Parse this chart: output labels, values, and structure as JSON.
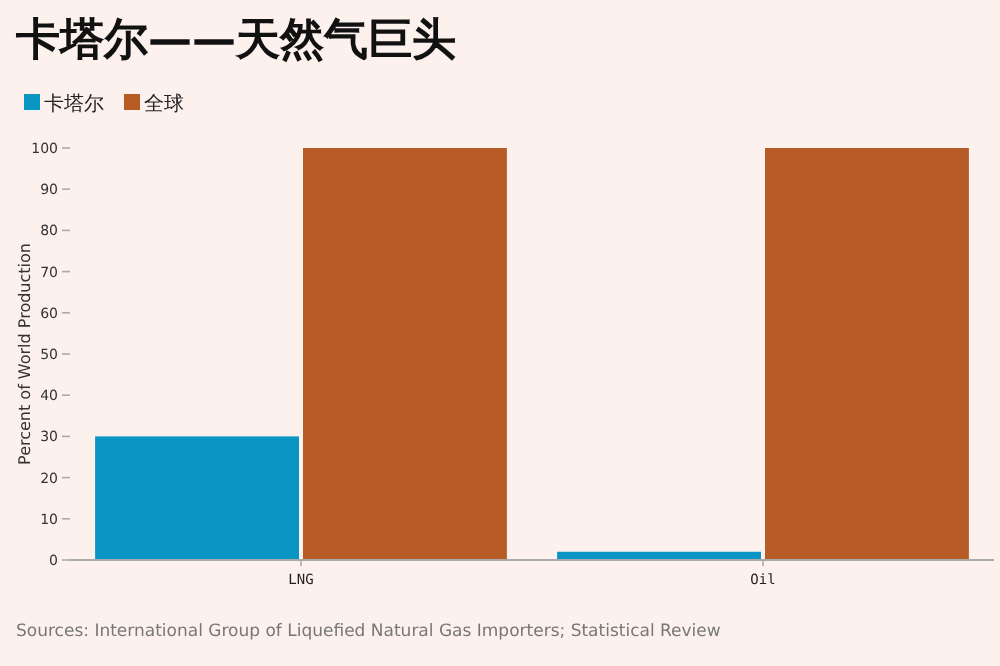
{
  "chart_data": {
    "type": "bar",
    "title": "卡塔尔——天然气巨头",
    "ylabel": "Percent of World Production",
    "categories": [
      "LNG",
      "Oil"
    ],
    "series": [
      {
        "name": "卡塔尔",
        "color": "#0a96c4",
        "values": [
          30,
          2
        ]
      },
      {
        "name": "全球",
        "color": "#b85c27",
        "values": [
          100,
          100
        ]
      }
    ],
    "ylim": [
      0,
      100
    ],
    "yticks": [
      0,
      10,
      20,
      30,
      40,
      50,
      60,
      70,
      80,
      90,
      100
    ],
    "grid": false,
    "legend": "top left",
    "annotations": [
      "Sources: International Group of Liquefied Natural Gas Importers; Statistical Review"
    ]
  }
}
